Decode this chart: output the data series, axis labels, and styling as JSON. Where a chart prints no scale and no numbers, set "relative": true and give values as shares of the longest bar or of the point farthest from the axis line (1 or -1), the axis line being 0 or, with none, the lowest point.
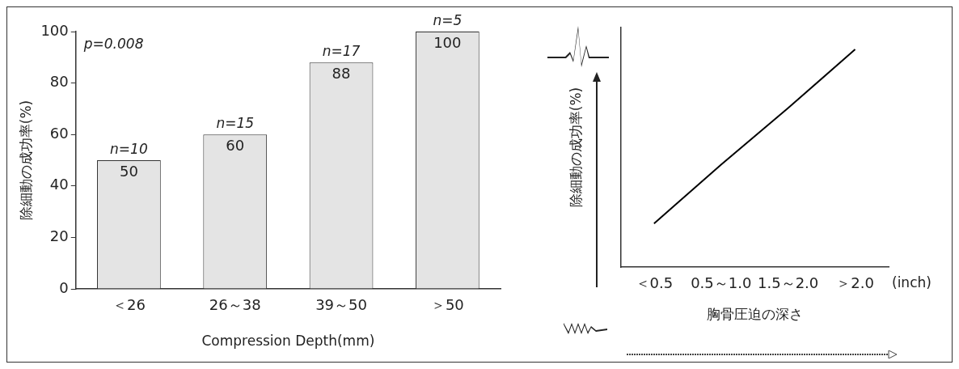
{
  "chart_data": [
    {
      "type": "bar",
      "categories": [
        "＜26",
        "26～38",
        "39～50",
        "＞50"
      ],
      "values": [
        50,
        60,
        88,
        100
      ],
      "color": "#e4e4e4",
      "ylim": [
        0,
        100
      ],
      "yticks": [
        0,
        20,
        40,
        60,
        80,
        100
      ],
      "ylabel": "除細動の成功率(%)",
      "xlabel": "Compression Depth(mm)",
      "data_labels": true,
      "grid": false,
      "annotations": [
        "p=0.008",
        {
          "text": "n=10",
          "x": "＜26",
          "y": 50
        },
        {
          "text": "n=15",
          "x": "26～38",
          "y": 60
        },
        {
          "text": "n=17",
          "x": "39～50",
          "y": 88
        },
        {
          "text": "n=5",
          "x": "＞50",
          "y": 100
        }
      ]
    },
    {
      "type": "line",
      "relative": true,
      "categories": [
        "＜0.5",
        "0.5～1.0",
        "1.5～2.0",
        "＞2.0"
      ],
      "values": [
        0.2,
        0.47,
        0.73,
        1
      ],
      "color": "#000000",
      "marker": "none",
      "ylabel": "除細動の成功率(%)",
      "xlabel": "胸骨圧迫の深さ",
      "grid": false,
      "annotations": [
        "(inch)"
      ]
    }
  ]
}
